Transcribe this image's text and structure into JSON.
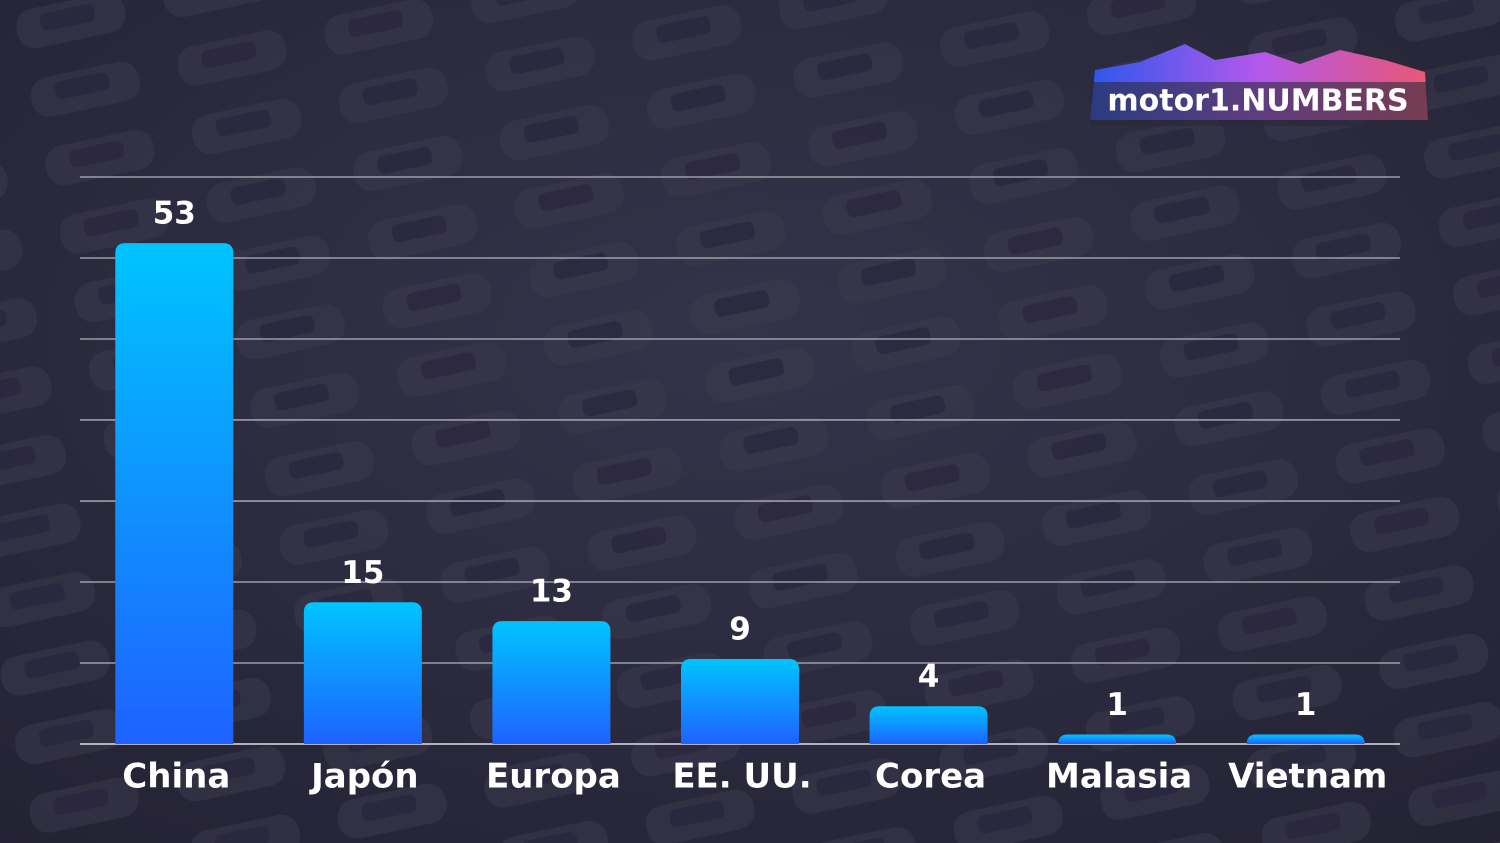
{
  "logo": "motor1.NUMBERS",
  "chart_data": {
    "type": "bar",
    "categories": [
      "China",
      "Japón",
      "Europa",
      "EE. UU.",
      "Corea",
      "Malasia",
      "Vietnam"
    ],
    "values": [
      53,
      15,
      13,
      9,
      4,
      1,
      1
    ],
    "colors": [
      "#00c4ff",
      "#1e62ff"
    ],
    "ylim": [
      0,
      60
    ],
    "yticks": [
      0,
      8.57,
      17.14,
      25.71,
      34.29,
      42.86,
      51.43,
      60
    ],
    "grid": true
  }
}
